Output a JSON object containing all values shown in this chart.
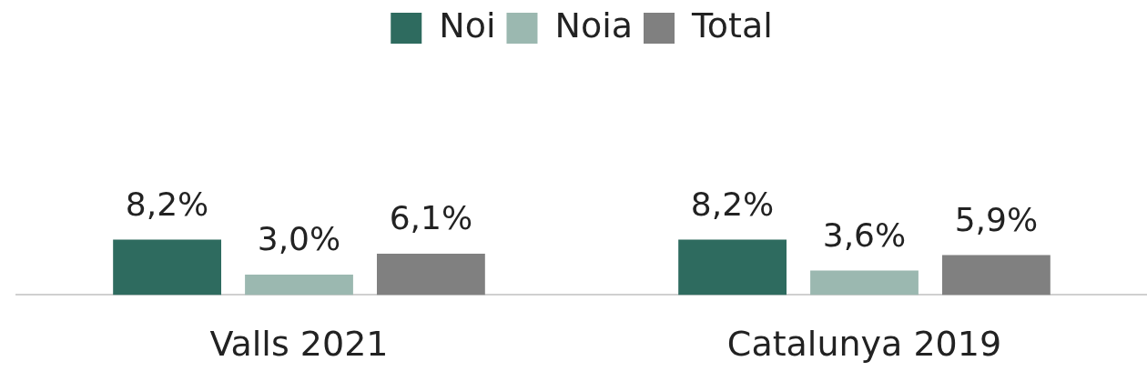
{
  "chart_data": {
    "type": "bar",
    "categories": [
      "Valls 2021",
      "Catalunya 2019"
    ],
    "series": [
      {
        "name": "Noi",
        "color": "#2e6b5f",
        "values": [
          8.2,
          8.2
        ],
        "value_labels": [
          "8,2%",
          "8,2%"
        ]
      },
      {
        "name": "Noia",
        "color": "#9bb8b0",
        "values": [
          3.0,
          3.6
        ],
        "value_labels": [
          "3,0%",
          "3,6%"
        ]
      },
      {
        "name": "Total",
        "color": "#808080",
        "values": [
          6.1,
          5.9
        ],
        "value_labels": [
          "6,1%",
          "5,9%"
        ]
      }
    ],
    "tick_labels": "x",
    "grid": false,
    "legend": "top"
  }
}
